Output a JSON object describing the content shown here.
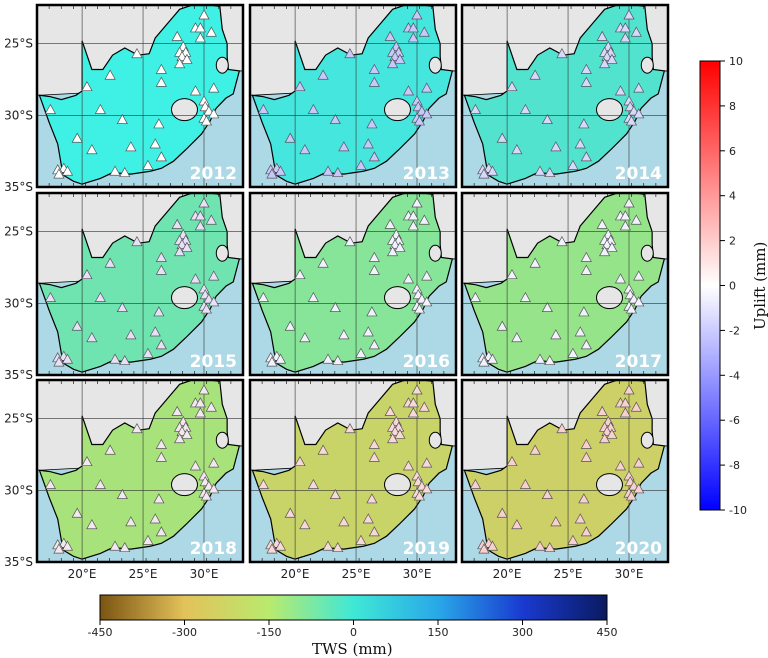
{
  "panels": [
    {
      "year": "2012",
      "land_color": "#3ff0e4",
      "station_color": "#ffffff"
    },
    {
      "year": "2013",
      "land_color": "#44e6de",
      "station_color": "#c8c8ff"
    },
    {
      "year": "2014",
      "land_color": "#52e3cf",
      "station_color": "#d8d8ff"
    },
    {
      "year": "2015",
      "land_color": "#6fe4b0",
      "station_color": "#e8e0f8"
    },
    {
      "year": "2016",
      "land_color": "#86e598",
      "station_color": "#f2f2ff"
    },
    {
      "year": "2017",
      "land_color": "#96e48a",
      "station_color": "#f2f2ff"
    },
    {
      "year": "2018",
      "land_color": "#a8e27a",
      "station_color": "#f4e8f0"
    },
    {
      "year": "2019",
      "land_color": "#c8d468",
      "station_color": "#f8d8d8"
    },
    {
      "year": "2020",
      "land_color": "#ccd066",
      "station_color": "#f8d0d0"
    }
  ],
  "map": {
    "lon_range": [
      16.3,
      33.2
    ],
    "lat_range": [
      -35,
      -22.3
    ],
    "lat_ticks": [
      {
        "value": -25,
        "label": "25°S"
      },
      {
        "value": -30,
        "label": "30°S"
      },
      {
        "value": -35,
        "label": "35°S"
      }
    ],
    "lon_ticks": [
      {
        "value": 20,
        "label": "20°E"
      },
      {
        "value": 25,
        "label": "25°E"
      },
      {
        "value": 30,
        "label": "30°E"
      }
    ],
    "ocean_color": "#add8e6",
    "outside_land_color": "#e6e6e6",
    "outline": [
      [
        16.5,
        -28.6
      ],
      [
        17.3,
        -30.5
      ],
      [
        18.0,
        -32.0
      ],
      [
        18.3,
        -33.5
      ],
      [
        18.5,
        -34.2
      ],
      [
        19.3,
        -34.6
      ],
      [
        20.0,
        -34.8
      ],
      [
        21.5,
        -34.4
      ],
      [
        22.5,
        -34.0
      ],
      [
        24.0,
        -34.1
      ],
      [
        25.6,
        -33.9
      ],
      [
        26.5,
        -33.7
      ],
      [
        27.5,
        -33.2
      ],
      [
        28.5,
        -32.4
      ],
      [
        29.8,
        -31.3
      ],
      [
        30.5,
        -30.4
      ],
      [
        31.0,
        -29.5
      ],
      [
        31.8,
        -28.8
      ],
      [
        32.4,
        -28.5
      ],
      [
        32.9,
        -26.9
      ],
      [
        32.0,
        -26.8
      ],
      [
        31.9,
        -25.9
      ],
      [
        31.9,
        -25.0
      ],
      [
        31.5,
        -24.0
      ],
      [
        31.3,
        -22.4
      ],
      [
        30.5,
        -22.3
      ],
      [
        29.4,
        -22.2
      ],
      [
        28.0,
        -22.6
      ],
      [
        27.0,
        -23.6
      ],
      [
        26.0,
        -24.6
      ],
      [
        25.5,
        -25.7
      ],
      [
        24.6,
        -25.8
      ],
      [
        23.5,
        -25.3
      ],
      [
        22.5,
        -25.8
      ],
      [
        21.7,
        -26.8
      ],
      [
        20.8,
        -26.8
      ],
      [
        20.0,
        -24.8
      ],
      [
        20.0,
        -28.3
      ],
      [
        19.5,
        -28.6
      ],
      [
        18.3,
        -28.9
      ],
      [
        17.4,
        -28.7
      ]
    ],
    "lesotho": [
      28.4,
      -29.6
    ],
    "eswatini": [
      31.5,
      -26.5
    ],
    "stations": [
      [
        30.0,
        -23.0
      ],
      [
        29.3,
        -23.9
      ],
      [
        29.7,
        -23.9
      ],
      [
        30.6,
        -24.2
      ],
      [
        29.7,
        -24.6
      ],
      [
        27.8,
        -24.5
      ],
      [
        28.3,
        -25.2
      ],
      [
        28.0,
        -25.6
      ],
      [
        28.5,
        -25.6
      ],
      [
        28.2,
        -25.9
      ],
      [
        28.6,
        -26.1
      ],
      [
        28.0,
        -26.4
      ],
      [
        24.5,
        -25.7
      ],
      [
        26.5,
        -26.8
      ],
      [
        26.5,
        -27.7
      ],
      [
        22.3,
        -27.2
      ],
      [
        20.4,
        -28.0
      ],
      [
        17.4,
        -29.6
      ],
      [
        21.5,
        -29.6
      ],
      [
        23.3,
        -30.3
      ],
      [
        26.3,
        -30.6
      ],
      [
        29.3,
        -28.3
      ],
      [
        30.0,
        -29.0
      ],
      [
        30.8,
        -28.1
      ],
      [
        30.1,
        -29.4
      ],
      [
        30.4,
        -29.7
      ],
      [
        30.8,
        -29.9
      ],
      [
        30.0,
        -30.2
      ],
      [
        30.2,
        -30.4
      ],
      [
        19.6,
        -31.6
      ],
      [
        20.8,
        -32.4
      ],
      [
        24.0,
        -32.2
      ],
      [
        26.0,
        -32.0
      ],
      [
        26.5,
        -32.9
      ],
      [
        25.4,
        -33.5
      ],
      [
        18.5,
        -33.7
      ],
      [
        18.0,
        -33.8
      ],
      [
        18.8,
        -33.9
      ],
      [
        18.1,
        -34.1
      ],
      [
        22.7,
        -33.9
      ],
      [
        23.5,
        -34.0
      ]
    ]
  },
  "uplift_colorbar": {
    "label": "Uplift (mm)",
    "min": -10,
    "max": 10,
    "ticks": [
      "10",
      "8",
      "6",
      "4",
      "2",
      "0",
      "-2",
      "-4",
      "-6",
      "-8",
      "-10"
    ],
    "colors": [
      "#0000ff",
      "#ffffff",
      "#ff0000"
    ]
  },
  "tws_colorbar": {
    "label": "TWS (mm)",
    "min": -450,
    "max": 450,
    "ticks": [
      "-450",
      "-300",
      "-150",
      "0",
      "150",
      "300",
      "450"
    ],
    "colors": [
      "#7a5412",
      "#e3c25a",
      "#b9ea6e",
      "#3fe8d6",
      "#29a8e8",
      "#1a3ad0",
      "#0a1a60"
    ]
  }
}
